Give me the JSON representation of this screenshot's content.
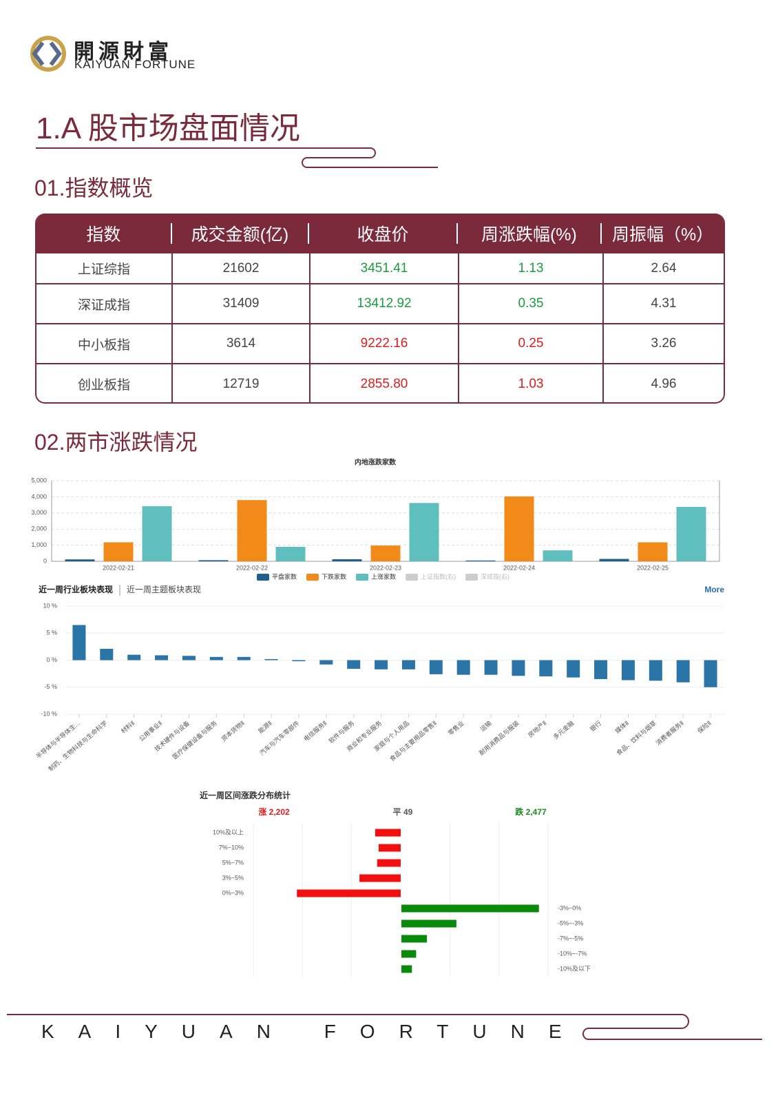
{
  "header": {
    "logo_cn": "開源財富",
    "logo_en": "KAIYUAN FORTUNE"
  },
  "title": "1.A 股市场盘面情况",
  "sections": [
    "01.指数概览",
    "02.两市涨跌情况"
  ],
  "table": {
    "columns": [
      "指数",
      "成交金额(亿)",
      "收盘价",
      "周涨跌幅(%)",
      "周振幅（%）"
    ],
    "rows": [
      [
        "上证综指",
        "21602",
        "3451.41",
        "1.13",
        "2.64"
      ],
      [
        "深证成指",
        "31409",
        "13412.92",
        "0.35",
        "4.31"
      ],
      [
        "中小板指",
        "3614",
        "9222.16",
        "0.25",
        "3.26"
      ],
      [
        "创业板指",
        "12719",
        "2855.80",
        "1.03",
        "4.96"
      ]
    ],
    "row_colors": [
      "#1a9c3e",
      "#1a9c3e",
      "#e01b1b",
      "#e01b1b"
    ]
  },
  "chart_data": [
    {
      "type": "bar",
      "title": "内地涨跌家数",
      "categories": [
        "2022-02-21",
        "2022-02-22",
        "2022-02-23",
        "2022-02-24",
        "2022-02-25"
      ],
      "series": [
        {
          "name": "平盘家数",
          "color": "#1f5f8b",
          "values": [
            120,
            70,
            130,
            50,
            150
          ]
        },
        {
          "name": "下跌家数",
          "color": "#f28a1a",
          "values": [
            1180,
            3800,
            980,
            4030,
            1180
          ]
        },
        {
          "name": "上涨家数",
          "color": "#5fbfbf",
          "values": [
            3420,
            900,
            3620,
            680,
            3380
          ]
        },
        {
          "name": "上证指数(右)",
          "color": "#cccccc",
          "values": [
            null,
            null,
            null,
            null,
            null
          ]
        },
        {
          "name": "深成指(右)",
          "color": "#cccccc",
          "values": [
            null,
            null,
            null,
            null,
            null
          ]
        }
      ],
      "ylim": [
        0,
        5000
      ],
      "yticks": [
        0,
        {
          "value": 1000,
          "label": "1,000"
        },
        {
          "value": 2000,
          "label": "2,000"
        },
        {
          "value": 3000,
          "label": "3,000"
        },
        {
          "value": 4000,
          "label": "4,000"
        },
        {
          "value": 5000,
          "label": "5,000"
        }
      ],
      "grid": true
    },
    {
      "type": "bar",
      "tabs": [
        "近一周行业板块表现",
        "近一周主题板块表现"
      ],
      "link": "More",
      "categories": [
        "半导体与半导体生...",
        "制药、生物科技与生命科学",
        "材料Ⅱ",
        "公用事业Ⅱ",
        "技术硬件与设备",
        "医疗保健设备与服务",
        "资本货物Ⅱ",
        "能源Ⅱ",
        "汽车与汽车零部件",
        "电信服务Ⅱ",
        "软件与服务",
        "商业和专业服务",
        "家庭与个人用品",
        "食品与主要用品零售Ⅱ",
        "零售业",
        "运输",
        "耐用消费品与服装",
        "房地产Ⅱ",
        "多元金融",
        "银行",
        "媒体Ⅱ",
        "食品、饮料与烟草",
        "消费者服务Ⅱ",
        "保险Ⅱ"
      ],
      "values": [
        6.5,
        2.1,
        1.0,
        0.9,
        0.8,
        0.6,
        0.6,
        0.2,
        -0.2,
        -0.8,
        -1.6,
        -1.7,
        -1.7,
        -2.6,
        -2.7,
        -2.7,
        -2.9,
        -3.0,
        -3.2,
        -3.5,
        -3.7,
        -3.8,
        -4.1,
        -5.0
      ],
      "color": "#2a74a8",
      "ylim": [
        -10,
        10
      ],
      "yticks": [
        {
          "value": 10,
          "label": "10 %"
        },
        {
          "value": 5,
          "label": "5 %"
        },
        {
          "value": 0,
          "label": "0 %"
        },
        {
          "value": -5,
          "label": "-5 %"
        },
        {
          "value": -10,
          "label": "-10 %"
        }
      ],
      "grid": true
    },
    {
      "type": "hbar",
      "title": "近一周区间涨跌分布统计",
      "summary": [
        {
          "label": "涨 2,202",
          "color": "#e01b1b"
        },
        {
          "label": "平 49",
          "color": "#555555"
        },
        {
          "label": "跌 2,477",
          "color": "#1a8a1a"
        }
      ],
      "series": [
        {
          "color": "#f01010",
          "categories": [
            "10%及以上",
            "7%~10%",
            "5%~7%",
            "3%~5%",
            "0%~3%"
          ],
          "values": [
            260,
            225,
            240,
            420,
            1057
          ]
        },
        {
          "color": "#0a8a0a",
          "categories": [
            "-3%~0%",
            "-5%~-3%",
            "-7%~-5%",
            "-10%~-7%",
            "-10%及以下"
          ],
          "values": [
            1400,
            560,
            260,
            150,
            107
          ]
        }
      ],
      "xlim": [
        0,
        1500
      ]
    }
  ],
  "footer": "KAIYUAN FORTUNE"
}
